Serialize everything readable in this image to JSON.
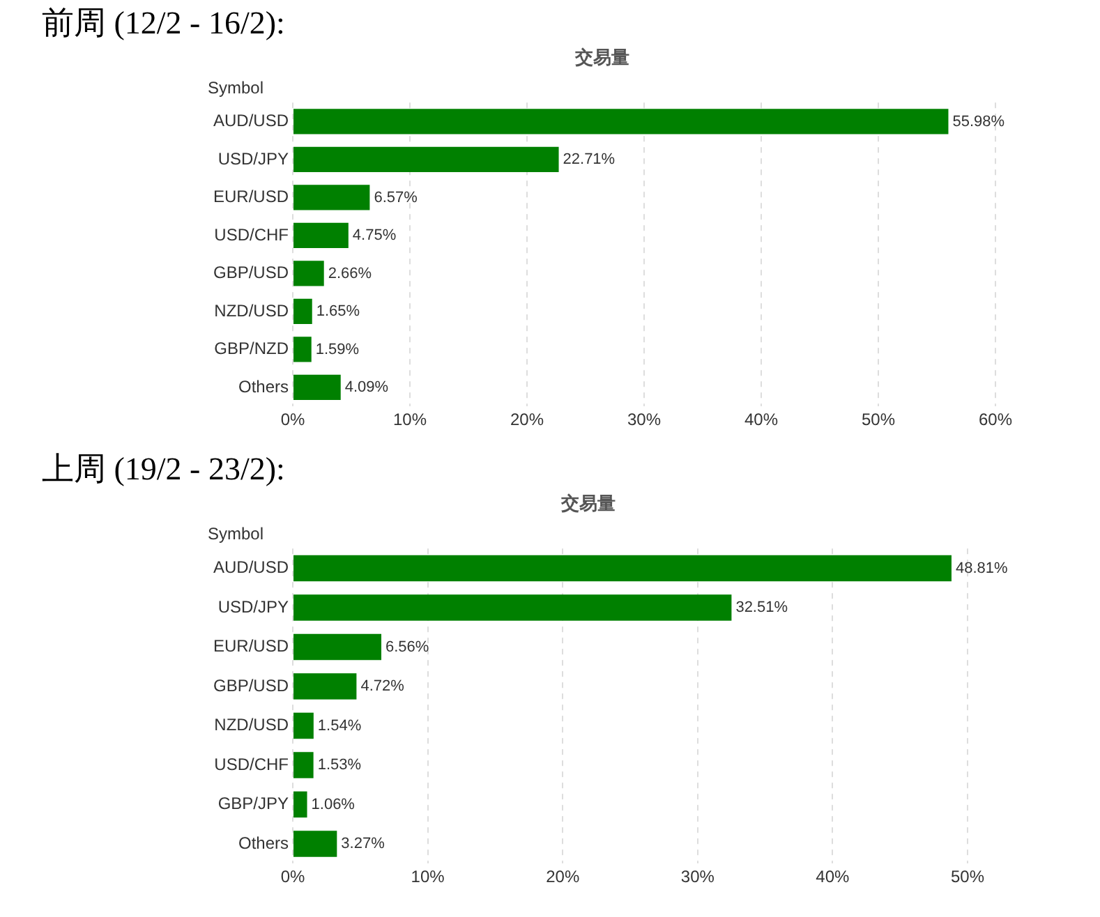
{
  "chart_data": [
    {
      "type": "bar",
      "orientation": "horizontal",
      "title": "前周 (12/2 - 16/2):",
      "subtitle": "交易量",
      "ylabel": "Symbol",
      "categories": [
        "AUD/USD",
        "USD/JPY",
        "EUR/USD",
        "USD/CHF",
        "GBP/USD",
        "NZD/USD",
        "GBP/NZD",
        "Others"
      ],
      "values": [
        55.98,
        22.71,
        6.57,
        4.75,
        2.66,
        1.65,
        1.59,
        4.09
      ],
      "color": "#008000",
      "value_labels": [
        "55.98%",
        "22.71%",
        "6.57%",
        "4.75%",
        "2.66%",
        "1.65%",
        "1.59%",
        "4.09%"
      ],
      "xlim": [
        0,
        60
      ],
      "xticks": [
        {
          "value": 0,
          "label": "0%"
        },
        {
          "value": 10,
          "label": "10%"
        },
        {
          "value": 20,
          "label": "20%"
        },
        {
          "value": 30,
          "label": "30%"
        },
        {
          "value": 40,
          "label": "40%"
        },
        {
          "value": 50,
          "label": "50%"
        },
        {
          "value": 60,
          "label": "60%"
        }
      ],
      "grid": "x",
      "legend": false
    },
    {
      "type": "bar",
      "orientation": "horizontal",
      "title": "上周 (19/2 - 23/2):",
      "subtitle": "交易量",
      "ylabel": "Symbol",
      "categories": [
        "AUD/USD",
        "USD/JPY",
        "EUR/USD",
        "GBP/USD",
        "NZD/USD",
        "USD/CHF",
        "GBP/JPY",
        "Others"
      ],
      "values": [
        48.81,
        32.51,
        6.56,
        4.72,
        1.54,
        1.53,
        1.06,
        3.27
      ],
      "color": "#008000",
      "value_labels": [
        "48.81%",
        "32.51%",
        "6.56%",
        "4.72%",
        "1.54%",
        "1.53%",
        "1.06%",
        "3.27%"
      ],
      "xlim": [
        0,
        50
      ],
      "xticks": [
        {
          "value": 0,
          "label": "0%"
        },
        {
          "value": 10,
          "label": "10%"
        },
        {
          "value": 20,
          "label": "20%"
        },
        {
          "value": 30,
          "label": "30%"
        },
        {
          "value": 40,
          "label": "40%"
        },
        {
          "value": 50,
          "label": "50%"
        }
      ],
      "grid": "x",
      "legend": false
    }
  ]
}
